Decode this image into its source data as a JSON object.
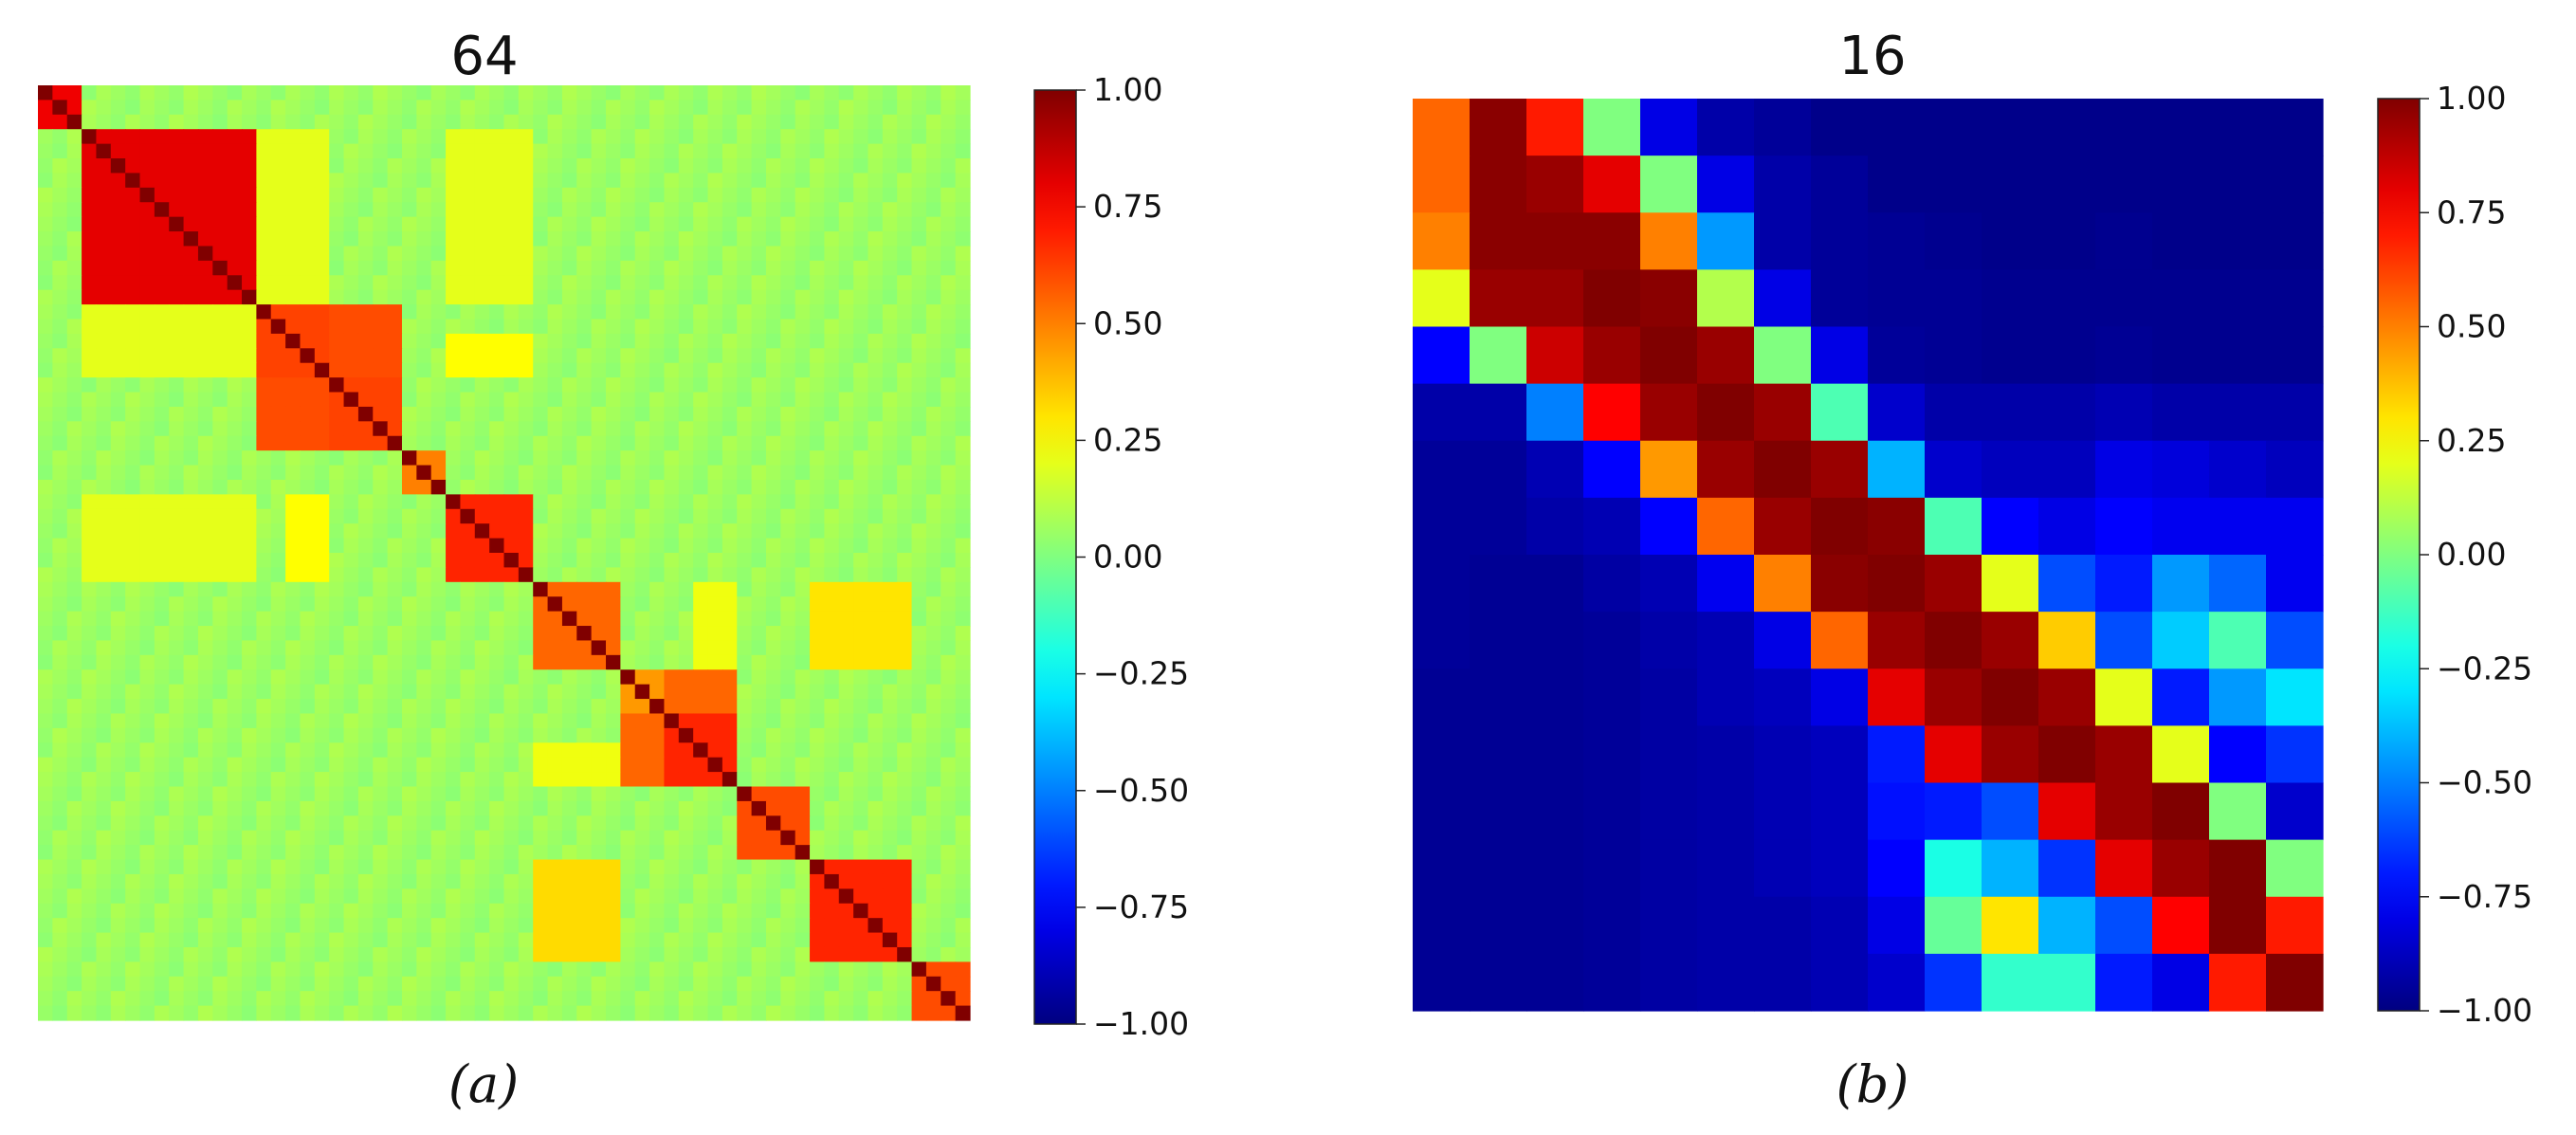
{
  "figure": {
    "caption_a": "(a)",
    "caption_b": "(b)"
  },
  "chart_data": [
    {
      "type": "heatmap",
      "title": "64",
      "n": 64,
      "colormap": "jet",
      "vmin": -1,
      "vmax": 1,
      "colorbar_ticks": [
        "1.00",
        "0.75",
        "0.50",
        "0.25",
        "0.00",
        "−0.25",
        "−0.50",
        "−0.75",
        "−1.00"
      ],
      "colorbar_tick_values": [
        1.0,
        0.75,
        0.5,
        0.25,
        0.0,
        -0.25,
        -0.5,
        -0.75,
        -1.0
      ],
      "background_value": 0.06,
      "blocks": [
        {
          "start": 0,
          "end": 2,
          "value": 0.78
        },
        {
          "start": 3,
          "end": 14,
          "value": 0.8
        },
        {
          "start": 15,
          "end": 19,
          "value": 0.62
        },
        {
          "start": 20,
          "end": 24,
          "value": 0.62
        },
        {
          "start": 25,
          "end": 27,
          "value": 0.5
        },
        {
          "start": 28,
          "end": 33,
          "value": 0.68
        },
        {
          "start": 34,
          "end": 39,
          "value": 0.55
        },
        {
          "start": 40,
          "end": 42,
          "value": 0.45
        },
        {
          "start": 43,
          "end": 47,
          "value": 0.68
        },
        {
          "start": 48,
          "end": 52,
          "value": 0.6
        },
        {
          "start": 53,
          "end": 59,
          "value": 0.68
        },
        {
          "start": 60,
          "end": 63,
          "value": 0.6
        }
      ],
      "off_diagonal": [
        {
          "rows": [
            20,
            24
          ],
          "cols": [
            15,
            19
          ],
          "value": 0.6
        },
        {
          "rows": [
            15,
            19
          ],
          "cols": [
            20,
            24
          ],
          "value": 0.6
        },
        {
          "rows": [
            43,
            47
          ],
          "cols": [
            40,
            42
          ],
          "value": 0.55
        },
        {
          "rows": [
            40,
            42
          ],
          "cols": [
            43,
            47
          ],
          "value": 0.55
        },
        {
          "rows": [
            17,
            19
          ],
          "cols": [
            28,
            33
          ],
          "value": 0.25
        },
        {
          "rows": [
            28,
            33
          ],
          "cols": [
            17,
            19
          ],
          "value": 0.25
        },
        {
          "rows": [
            34,
            39
          ],
          "cols": [
            53,
            59
          ],
          "value": 0.3
        },
        {
          "rows": [
            53,
            59
          ],
          "cols": [
            34,
            39
          ],
          "value": 0.32
        },
        {
          "rows": [
            3,
            14
          ],
          "cols": [
            15,
            19
          ],
          "value": 0.2
        },
        {
          "rows": [
            15,
            19
          ],
          "cols": [
            3,
            14
          ],
          "value": 0.2
        },
        {
          "rows": [
            28,
            33
          ],
          "cols": [
            3,
            14
          ],
          "value": 0.2
        },
        {
          "rows": [
            3,
            14
          ],
          "cols": [
            28,
            33
          ],
          "value": 0.2
        },
        {
          "rows": [
            34,
            39
          ],
          "cols": [
            45,
            47
          ],
          "value": 0.22
        },
        {
          "rows": [
            45,
            47
          ],
          "cols": [
            34,
            39
          ],
          "value": 0.22
        }
      ]
    },
    {
      "type": "heatmap",
      "title": "16",
      "n": 16,
      "colormap": "jet",
      "vmin": -1,
      "vmax": 1,
      "colorbar_ticks": [
        "1.00",
        "0.75",
        "0.50",
        "0.25",
        "0.00",
        "−0.25",
        "−0.50",
        "−0.75",
        "−1.00"
      ],
      "colorbar_tick_values": [
        1.0,
        0.75,
        0.5,
        0.25,
        0.0,
        -0.25,
        -0.5,
        -0.75,
        -1.0
      ],
      "matrix": [
        [
          0.55,
          0.98,
          0.7,
          0.0,
          -0.8,
          -0.92,
          -0.95,
          -0.98,
          -0.98,
          -0.98,
          -0.98,
          -0.98,
          -0.98,
          -0.98,
          -0.98,
          -0.98
        ],
        [
          0.55,
          0.98,
          0.95,
          0.8,
          0.0,
          -0.8,
          -0.92,
          -0.95,
          -0.98,
          -0.98,
          -0.98,
          -0.98,
          -0.98,
          -0.98,
          -0.98,
          -0.98
        ],
        [
          0.5,
          0.98,
          0.98,
          0.98,
          0.5,
          -0.45,
          -0.92,
          -0.95,
          -0.96,
          -0.97,
          -0.98,
          -0.98,
          -0.97,
          -0.98,
          -0.98,
          -0.98
        ],
        [
          0.2,
          0.95,
          0.95,
          1.0,
          0.98,
          0.1,
          -0.8,
          -0.95,
          -0.96,
          -0.96,
          -0.97,
          -0.97,
          -0.97,
          -0.97,
          -0.97,
          -0.97
        ],
        [
          -0.75,
          0.0,
          0.85,
          0.95,
          1.0,
          0.95,
          0.0,
          -0.8,
          -0.95,
          -0.96,
          -0.97,
          -0.97,
          -0.96,
          -0.97,
          -0.97,
          -0.97
        ],
        [
          -0.92,
          -0.92,
          -0.5,
          0.75,
          0.95,
          1.0,
          0.95,
          -0.1,
          -0.85,
          -0.92,
          -0.92,
          -0.92,
          -0.9,
          -0.92,
          -0.92,
          -0.92
        ],
        [
          -0.95,
          -0.95,
          -0.9,
          -0.75,
          0.45,
          0.95,
          1.0,
          0.95,
          -0.4,
          -0.85,
          -0.88,
          -0.88,
          -0.8,
          -0.82,
          -0.85,
          -0.88
        ],
        [
          -0.95,
          -0.95,
          -0.92,
          -0.9,
          -0.75,
          0.55,
          0.95,
          1.0,
          0.98,
          -0.1,
          -0.75,
          -0.8,
          -0.75,
          -0.78,
          -0.78,
          -0.78
        ],
        [
          -0.95,
          -0.96,
          -0.96,
          -0.93,
          -0.9,
          -0.78,
          0.5,
          0.98,
          1.0,
          0.95,
          0.2,
          -0.6,
          -0.7,
          -0.45,
          -0.55,
          -0.78
        ],
        [
          -0.95,
          -0.96,
          -0.96,
          -0.95,
          -0.92,
          -0.9,
          -0.8,
          0.55,
          0.95,
          1.0,
          0.95,
          0.35,
          -0.6,
          -0.35,
          -0.1,
          -0.6
        ],
        [
          -0.96,
          -0.96,
          -0.96,
          -0.95,
          -0.93,
          -0.9,
          -0.88,
          -0.8,
          0.8,
          0.95,
          1.0,
          0.95,
          0.2,
          -0.7,
          -0.45,
          -0.3
        ],
        [
          -0.96,
          -0.96,
          -0.96,
          -0.95,
          -0.93,
          -0.92,
          -0.9,
          -0.88,
          -0.7,
          0.8,
          0.95,
          1.0,
          0.95,
          0.2,
          -0.75,
          -0.65
        ],
        [
          -0.96,
          -0.96,
          -0.96,
          -0.95,
          -0.93,
          -0.92,
          -0.9,
          -0.88,
          -0.72,
          -0.7,
          -0.6,
          0.8,
          0.95,
          1.0,
          0.0,
          -0.85
        ],
        [
          -0.96,
          -0.96,
          -0.96,
          -0.95,
          -0.93,
          -0.92,
          -0.9,
          -0.88,
          -0.75,
          -0.2,
          -0.4,
          -0.65,
          0.8,
          0.95,
          1.0,
          0.0
        ],
        [
          -0.96,
          -0.96,
          -0.96,
          -0.95,
          -0.93,
          -0.92,
          -0.92,
          -0.9,
          -0.8,
          -0.05,
          0.3,
          -0.4,
          -0.6,
          0.75,
          1.0,
          0.7
        ],
        [
          -0.96,
          -0.96,
          -0.96,
          -0.95,
          -0.93,
          -0.92,
          -0.92,
          -0.9,
          -0.85,
          -0.65,
          -0.15,
          -0.15,
          -0.7,
          -0.8,
          0.7,
          1.0
        ]
      ]
    }
  ]
}
